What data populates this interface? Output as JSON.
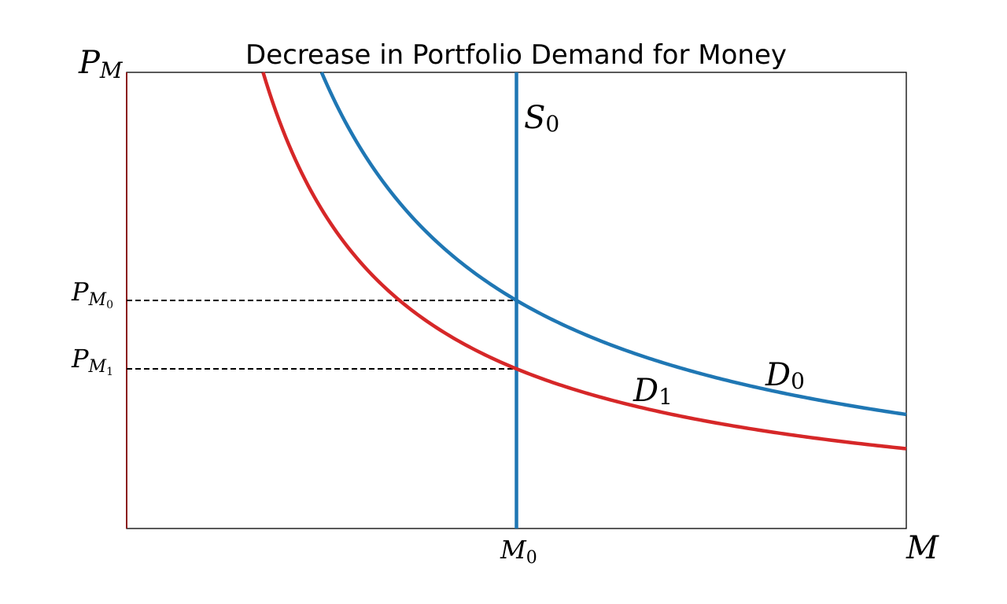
{
  "chart_data": {
    "type": "line",
    "title": "Decrease in Portfolio Demand for Money",
    "xlabel": "M",
    "ylabel": "P_M",
    "xlim": [
      0,
      10
    ],
    "ylim": [
      0,
      10
    ],
    "grid": false,
    "legend": "none",
    "series": [
      {
        "name": "S₀",
        "color": "#1f77b4",
        "x": [
          5,
          5
        ],
        "y": [
          0,
          10
        ]
      },
      {
        "name": "D₀",
        "color": "#1f77b4",
        "x": [
          2.5,
          3.0,
          3.5,
          4.0,
          4.5,
          5.0,
          5.5,
          6.0,
          6.5,
          7.0,
          7.5,
          8.0,
          8.5,
          9.0,
          9.5,
          10.0
        ],
        "y": [
          10.0,
          8.33,
          7.14,
          6.25,
          5.56,
          5.0,
          4.55,
          4.17,
          3.85,
          3.57,
          3.33,
          3.13,
          2.94,
          2.78,
          2.63,
          2.5
        ]
      },
      {
        "name": "D₁",
        "color": "#d62728",
        "x": [
          1.75,
          2.0,
          2.5,
          3.0,
          3.5,
          4.0,
          4.5,
          5.0,
          5.5,
          6.0,
          6.5,
          7.0,
          7.5,
          8.0,
          8.5,
          9.0,
          9.5,
          10.0
        ],
        "y": [
          10.0,
          8.75,
          7.0,
          5.83,
          5.0,
          4.38,
          3.89,
          3.5,
          3.18,
          2.92,
          2.69,
          2.5,
          2.33,
          2.19,
          2.06,
          1.94,
          1.84,
          1.75
        ]
      }
    ],
    "guides": [
      {
        "label": "P_M0",
        "y": 5.0,
        "x_to": 5.0
      },
      {
        "label": "P_M1",
        "y": 3.5,
        "x_to": 5.0
      }
    ],
    "x_ticks": [
      {
        "label": "M0",
        "x": 5.0
      }
    ],
    "labels": {
      "s0": {
        "main": "S",
        "sub": "0"
      },
      "d0": {
        "main": "D",
        "sub": "0"
      },
      "d1": {
        "main": "D",
        "sub": "1"
      },
      "pm": {
        "main": "P",
        "sub": "M"
      },
      "m": {
        "main": "M"
      },
      "pm0": {
        "main": "P",
        "sub": "M",
        "subsub": "0"
      },
      "pm1": {
        "main": "P",
        "sub": "M",
        "subsub": "1"
      },
      "m0": {
        "main": "M",
        "sub": "0"
      }
    }
  }
}
